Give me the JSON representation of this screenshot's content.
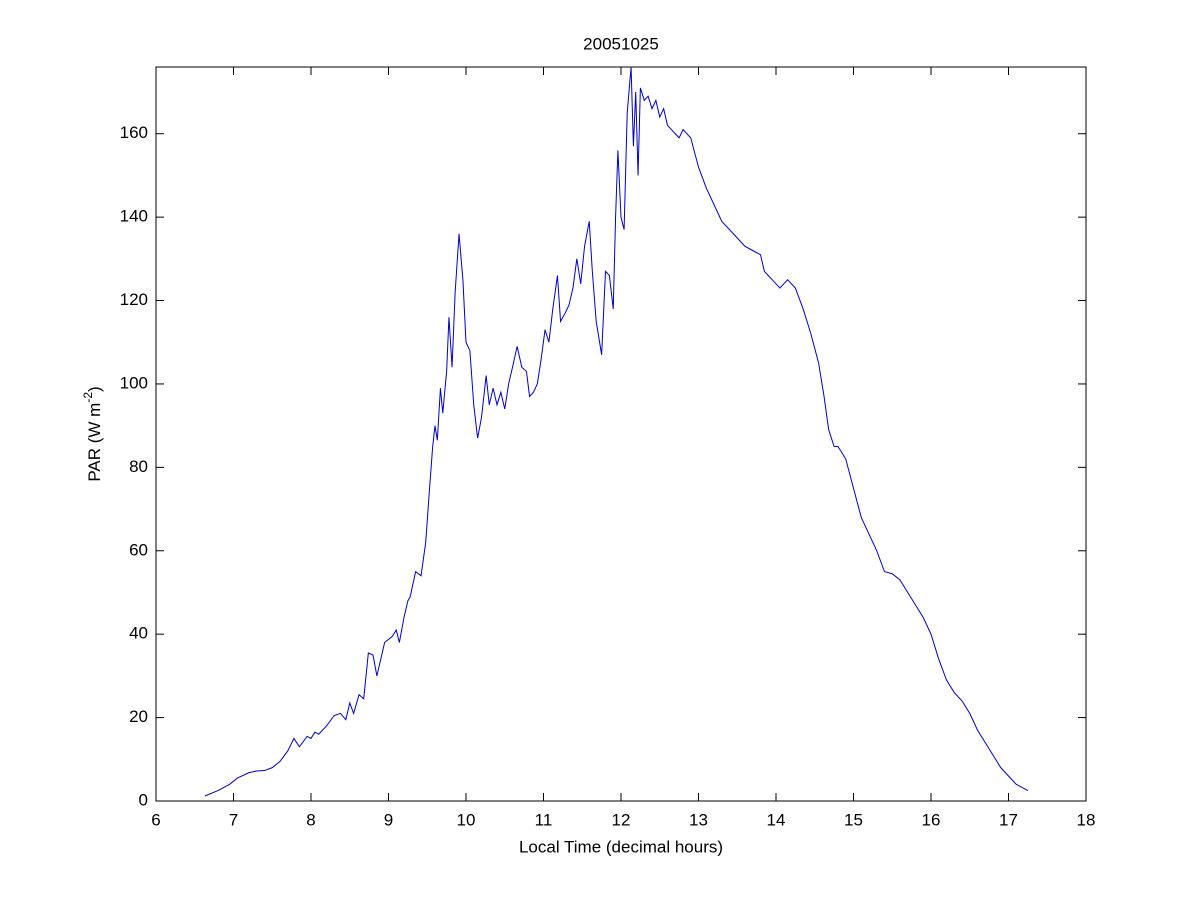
{
  "chart_data": {
    "type": "line",
    "title": "20051025",
    "xlabel": "Local Time (decimal hours)",
    "ylabel": [
      "PAR (W m",
      "-2",
      ")"
    ],
    "x": [
      6.63,
      6.8,
      6.95,
      7.05,
      7.2,
      7.3,
      7.4,
      7.5,
      7.6,
      7.7,
      7.78,
      7.85,
      7.95,
      8.0,
      8.05,
      8.1,
      8.2,
      8.3,
      8.38,
      8.45,
      8.5,
      8.55,
      8.62,
      8.68,
      8.74,
      8.8,
      8.85,
      8.95,
      9.05,
      9.1,
      9.14,
      9.2,
      9.25,
      9.28,
      9.35,
      9.42,
      9.48,
      9.53,
      9.57,
      9.6,
      9.63,
      9.67,
      9.7,
      9.75,
      9.78,
      9.82,
      9.86,
      9.91,
      9.96,
      10.0,
      10.05,
      10.1,
      10.15,
      10.2,
      10.26,
      10.3,
      10.35,
      10.4,
      10.45,
      10.5,
      10.55,
      10.6,
      10.66,
      10.72,
      10.78,
      10.82,
      10.87,
      10.92,
      10.97,
      11.02,
      11.07,
      11.12,
      11.18,
      11.22,
      11.28,
      11.33,
      11.38,
      11.43,
      11.48,
      11.53,
      11.59,
      11.63,
      11.68,
      11.75,
      11.8,
      11.85,
      11.9,
      11.93,
      11.96,
      12.0,
      12.04,
      12.08,
      12.13,
      12.16,
      12.19,
      12.22,
      12.25,
      12.3,
      12.35,
      12.4,
      12.45,
      12.5,
      12.55,
      12.6,
      12.65,
      12.7,
      12.75,
      12.8,
      12.9,
      13.0,
      13.1,
      13.2,
      13.3,
      13.4,
      13.5,
      13.6,
      13.7,
      13.8,
      13.85,
      13.95,
      14.05,
      14.15,
      14.25,
      14.35,
      14.45,
      14.55,
      14.62,
      14.68,
      14.75,
      14.8,
      14.9,
      15.0,
      15.1,
      15.2,
      15.3,
      15.4,
      15.5,
      15.6,
      15.7,
      15.8,
      15.9,
      16.0,
      16.1,
      16.2,
      16.3,
      16.4,
      16.5,
      16.6,
      16.7,
      16.8,
      16.9,
      17.0,
      17.1,
      17.25
    ],
    "series": [
      {
        "color": "#0000cc",
        "values": [
          1.2,
          2.5,
          4,
          5.5,
          6.8,
          7.2,
          7.3,
          8,
          9.5,
          12,
          15,
          13,
          15.5,
          15,
          16.5,
          16,
          18,
          20.5,
          21,
          19.5,
          23.5,
          21,
          25.5,
          24.5,
          35.5,
          35,
          30,
          38,
          39.5,
          41,
          38,
          44,
          48,
          49,
          55,
          54,
          62,
          75,
          85,
          90,
          86.5,
          99,
          93,
          103,
          116,
          104,
          122,
          136,
          125,
          110,
          108,
          95,
          87,
          92,
          102,
          95,
          99,
          95,
          98,
          94,
          100,
          104,
          109,
          104,
          103,
          97,
          98,
          100,
          106,
          113,
          110,
          118,
          126,
          115,
          117,
          119,
          123,
          130,
          124,
          133,
          139,
          127,
          115,
          107,
          127,
          126,
          118,
          140,
          156,
          140,
          137,
          165,
          176,
          157,
          170,
          150,
          171,
          168,
          169,
          166,
          168,
          164,
          166,
          162,
          161,
          160,
          159,
          161,
          159,
          152,
          147,
          143,
          139,
          137,
          135,
          133,
          132,
          131,
          127,
          125,
          123,
          125,
          123,
          118,
          112,
          105,
          97,
          89,
          85,
          85,
          82,
          75,
          68,
          64,
          60,
          55,
          54.5,
          53,
          50,
          47,
          44,
          40,
          34,
          29,
          26,
          24,
          21,
          17,
          14,
          11,
          8,
          6,
          4,
          2.5
        ]
      }
    ],
    "xlim": [
      6,
      18
    ],
    "xticks": [
      6,
      7,
      8,
      9,
      10,
      11,
      12,
      13,
      14,
      15,
      16,
      17,
      18
    ],
    "ylim": [
      0,
      176
    ],
    "yticks": [
      0,
      20,
      40,
      60,
      80,
      100,
      120,
      140,
      160
    ],
    "grid": false
  }
}
